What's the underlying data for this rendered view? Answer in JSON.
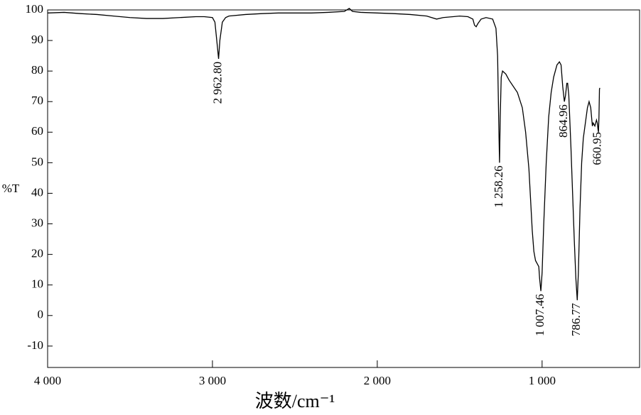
{
  "chart_data": {
    "type": "line",
    "x_label": "波数/cm⁻¹",
    "y_label": "%T",
    "xlim": [
      4000,
      400
    ],
    "ylim": [
      -17,
      100
    ],
    "xticks": [
      {
        "value": 4000,
        "label": "4 000"
      },
      {
        "value": 3000,
        "label": "3 000"
      },
      {
        "value": 2000,
        "label": "2 000"
      },
      {
        "value": 1000,
        "label": "1 000"
      }
    ],
    "yticks": [
      -10,
      0,
      10,
      20,
      30,
      40,
      50,
      60,
      70,
      80,
      90,
      100
    ],
    "series": [
      {
        "color": "#000000",
        "x": [
          4000,
          3900,
          3800,
          3700,
          3600,
          3500,
          3400,
          3300,
          3200,
          3100,
          3050,
          3000,
          2985,
          2970,
          2962.8,
          2955,
          2940,
          2920,
          2900,
          2800,
          2700,
          2600,
          2500,
          2400,
          2300,
          2200,
          2170,
          2150,
          2100,
          2000,
          1900,
          1800,
          1700,
          1640,
          1600,
          1500,
          1450,
          1420,
          1410,
          1400,
          1390,
          1370,
          1340,
          1300,
          1280,
          1270,
          1262,
          1258.26,
          1254,
          1248,
          1240,
          1220,
          1200,
          1150,
          1120,
          1100,
          1080,
          1070,
          1060,
          1050,
          1040,
          1030,
          1020,
          1015,
          1007.46,
          1000,
          990,
          975,
          960,
          945,
          930,
          910,
          895,
          885,
          875,
          864.96,
          858,
          850,
          845,
          838,
          825,
          815,
          805,
          795,
          786.77,
          780,
          770,
          760,
          750,
          740,
          725,
          715,
          705,
          695,
          690,
          680,
          670,
          665,
          660.95,
          658,
          655,
          652,
          650
        ],
        "values": [
          99,
          99.2,
          98.8,
          98.5,
          98,
          97.5,
          97.2,
          97.2,
          97.5,
          97.8,
          97.8,
          97.5,
          96,
          88,
          84,
          90,
          96,
          97.5,
          98,
          98.5,
          98.8,
          99,
          99,
          99,
          99.2,
          99.5,
          100.5,
          99.5,
          99.2,
          99,
          98.8,
          98.5,
          98,
          97,
          97.5,
          98,
          97.8,
          97,
          95,
          94.5,
          95.5,
          97,
          97.5,
          97,
          94,
          85,
          60,
          50,
          65,
          78,
          80,
          79,
          77,
          73,
          68,
          60,
          48,
          38,
          28,
          21,
          18,
          17,
          16,
          12,
          8,
          14,
          30,
          50,
          65,
          73,
          78,
          82,
          83,
          82,
          75,
          70,
          72,
          76,
          76,
          72,
          55,
          40,
          25,
          12,
          5,
          14,
          35,
          50,
          58,
          62,
          68,
          70,
          68,
          62,
          63,
          62,
          64,
          63,
          61,
          60,
          65,
          74,
          74.5
        ]
      }
    ],
    "annotations": [
      {
        "value": 2962.8,
        "label": "2 962.80"
      },
      {
        "value": 1258.26,
        "label": "1 258.26"
      },
      {
        "value": 1007.46,
        "label": "1 007.46"
      },
      {
        "value": 864.96,
        "label": "864.96"
      },
      {
        "value": 786.77,
        "label": "786.77"
      },
      {
        "value": 660.95,
        "label": "660.95"
      }
    ]
  }
}
